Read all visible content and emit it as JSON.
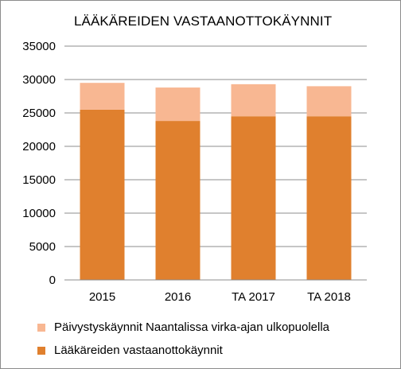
{
  "chart_data": {
    "type": "bar",
    "stacked": true,
    "title": "LÄÄKÄREIDEN VASTAANOTTOKÄYNNIT",
    "categories": [
      "2015",
      "2016",
      "TA 2017",
      "TA 2018"
    ],
    "series": [
      {
        "name": "Lääkäreiden vastaanottokäynnit",
        "color": "#e0802e",
        "values": [
          25500,
          23800,
          24500,
          24500
        ]
      },
      {
        "name": "Päivystyskäynnit Naantalissa virka-ajan ulkopuolella",
        "color": "#f8b792",
        "values": [
          4000,
          5000,
          4800,
          4500
        ]
      }
    ],
    "xlabel": "",
    "ylabel": "",
    "ylim": [
      0,
      35000
    ],
    "yticks": [
      "0",
      "5000",
      "10000",
      "15000",
      "20000",
      "25000",
      "30000",
      "35000"
    ],
    "grid": true,
    "legend": "bottom",
    "legend_order": [
      1,
      0
    ]
  }
}
